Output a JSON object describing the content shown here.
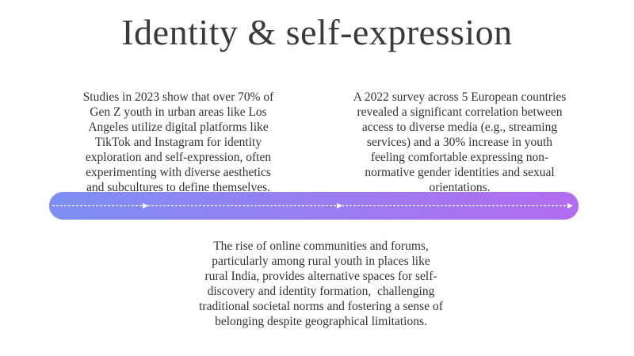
{
  "title": "Identity & self-expression",
  "paragraphs": [
    {
      "lines": [
        "Studies in 2023 show that over 70% of",
        "Gen Z youth in urban areas like Los",
        "Angeles utilize digital platforms like",
        "TikTok and Instagram for identity",
        "exploration and self-expression, often",
        "experimenting with diverse aesthetics",
        "and subcultures to define themselves."
      ]
    },
    {
      "lines": [
        "A 2022 survey across 5 European countries",
        "revealed a significant correlation between",
        "access to diverse media (e.g., streaming",
        "services) and a 30% increase in youth",
        "feeling comfortable expressing non-",
        "normative gender identities and sexual",
        "orientations."
      ]
    },
    {
      "lines": [
        "The rise of online communities and forums,",
        "particularly among rural youth in places like",
        "rural India, provides alternative spaces for self-",
        "discovery and identity formation,  challenging",
        "traditional societal norms and fostering a sense of",
        "belonging despite geographical limitations."
      ]
    }
  ]
}
